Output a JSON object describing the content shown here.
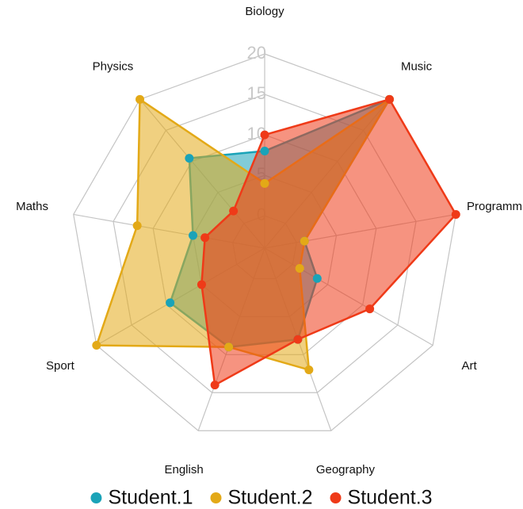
{
  "chart_data": {
    "type": "radar",
    "categories": [
      "Biology",
      "Music",
      "Programm",
      "Art",
      "Geography",
      "English",
      "Sport",
      "Maths",
      "Physics"
    ],
    "rlim": [
      -4,
      20
    ],
    "rticks": [
      0,
      5,
      10,
      15,
      20
    ],
    "grid": true,
    "legend": "bottom",
    "series": [
      {
        "name": "Student.1",
        "color": "#1aa3b8",
        "values": [
          8,
          20,
          1,
          3.5,
          8,
          9,
          9.5,
          5,
          10.5
        ]
      },
      {
        "name": "Student.2",
        "color": "#e3a917",
        "values": [
          4,
          20,
          1,
          1,
          12,
          9,
          20,
          12,
          20
        ]
      },
      {
        "name": "Student.3",
        "color": "#ef3a18",
        "values": [
          10,
          20,
          20,
          11,
          8,
          14,
          5,
          3.5,
          2
        ]
      }
    ]
  }
}
